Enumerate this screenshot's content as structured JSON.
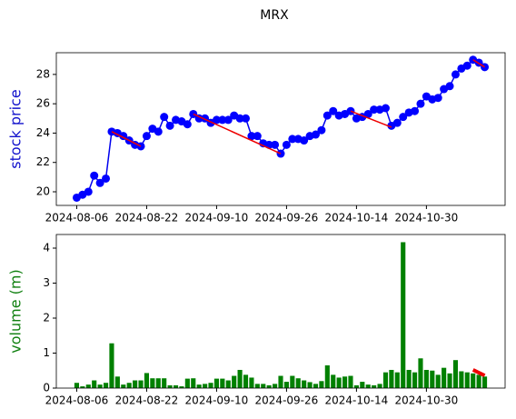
{
  "chart_data": [
    {
      "type": "line",
      "title": "MRX",
      "ylabel": "stock price",
      "ylabel_color": "#1010cc",
      "color": "#0000ee",
      "marker_color": "#0000ff",
      "values": [
        19.6,
        19.8,
        20.0,
        21.1,
        20.6,
        20.9,
        24.1,
        24.0,
        23.8,
        23.5,
        23.2,
        23.1,
        23.8,
        24.3,
        24.1,
        25.1,
        24.5,
        24.9,
        24.8,
        24.6,
        25.3,
        25.0,
        25.0,
        24.7,
        24.9,
        24.9,
        24.9,
        25.2,
        25.0,
        25.0,
        23.8,
        23.8,
        23.3,
        23.2,
        23.2,
        22.6,
        23.2,
        23.6,
        23.6,
        23.5,
        23.8,
        23.9,
        24.2,
        25.2,
        25.5,
        25.2,
        25.3,
        25.5,
        25.0,
        25.1,
        25.3,
        25.6,
        25.6,
        25.7,
        24.5,
        24.7,
        25.1,
        25.4,
        25.5,
        26.0,
        26.5,
        26.3,
        26.4,
        27.0,
        27.2,
        28.0,
        28.4,
        28.6,
        29.0,
        28.8,
        28.5
      ],
      "trend_color": "#ee0000",
      "trend_lines": [
        {
          "x": [
            6,
            11
          ],
          "values": [
            24.1,
            23.1
          ]
        },
        {
          "x": [
            20,
            35
          ],
          "values": [
            25.3,
            22.6
          ]
        },
        {
          "x": [
            47,
            54
          ],
          "values": [
            25.5,
            24.4
          ]
        },
        {
          "x": [
            68,
            70
          ],
          "values": [
            29.0,
            28.5
          ]
        }
      ],
      "ylim": [
        19.07,
        29.48
      ],
      "yticks": [
        20,
        22,
        24,
        26,
        28
      ],
      "xlim": [
        -3.5,
        73.5
      ],
      "xticks": [
        {
          "value": 0,
          "label": "2024-08-06"
        },
        {
          "value": 12,
          "label": "2024-08-22"
        },
        {
          "value": 24,
          "label": "2024-09-10"
        },
        {
          "value": 36,
          "label": "2024-09-26"
        },
        {
          "value": 48,
          "label": "2024-10-14"
        },
        {
          "value": 60,
          "label": "2024-10-30"
        }
      ]
    },
    {
      "type": "bar",
      "ylabel": "volume (m)",
      "ylabel_color": "#108010",
      "color": "#008000",
      "values": [
        0.15,
        0.05,
        0.1,
        0.22,
        0.1,
        0.15,
        1.28,
        0.33,
        0.1,
        0.15,
        0.22,
        0.22,
        0.43,
        0.28,
        0.28,
        0.28,
        0.08,
        0.08,
        0.05,
        0.27,
        0.28,
        0.1,
        0.12,
        0.15,
        0.27,
        0.27,
        0.22,
        0.35,
        0.52,
        0.38,
        0.3,
        0.12,
        0.12,
        0.08,
        0.12,
        0.35,
        0.18,
        0.35,
        0.28,
        0.22,
        0.17,
        0.12,
        0.2,
        0.65,
        0.38,
        0.3,
        0.33,
        0.35,
        0.08,
        0.18,
        0.1,
        0.08,
        0.12,
        0.45,
        0.52,
        0.45,
        4.17,
        0.52,
        0.45,
        0.85,
        0.52,
        0.5,
        0.38,
        0.58,
        0.42,
        0.8,
        0.48,
        0.45,
        0.42,
        0.38,
        0.33
      ],
      "trend_color": "#ee0000",
      "trend_lines": [
        {
          "x": [
            68,
            70
          ],
          "values": [
            0.52,
            0.36
          ]
        }
      ],
      "ylim": [
        0,
        4.39
      ],
      "yticks": [
        0,
        1,
        2,
        3,
        4
      ],
      "xlim": [
        -3.5,
        73.5
      ],
      "xticks": [
        {
          "value": 0,
          "label": "2024-08-06"
        },
        {
          "value": 12,
          "label": "2024-08-22"
        },
        {
          "value": 24,
          "label": "2024-09-10"
        },
        {
          "value": 36,
          "label": "2024-09-26"
        },
        {
          "value": 48,
          "label": "2024-10-14"
        },
        {
          "value": 60,
          "label": "2024-10-30"
        }
      ]
    }
  ]
}
